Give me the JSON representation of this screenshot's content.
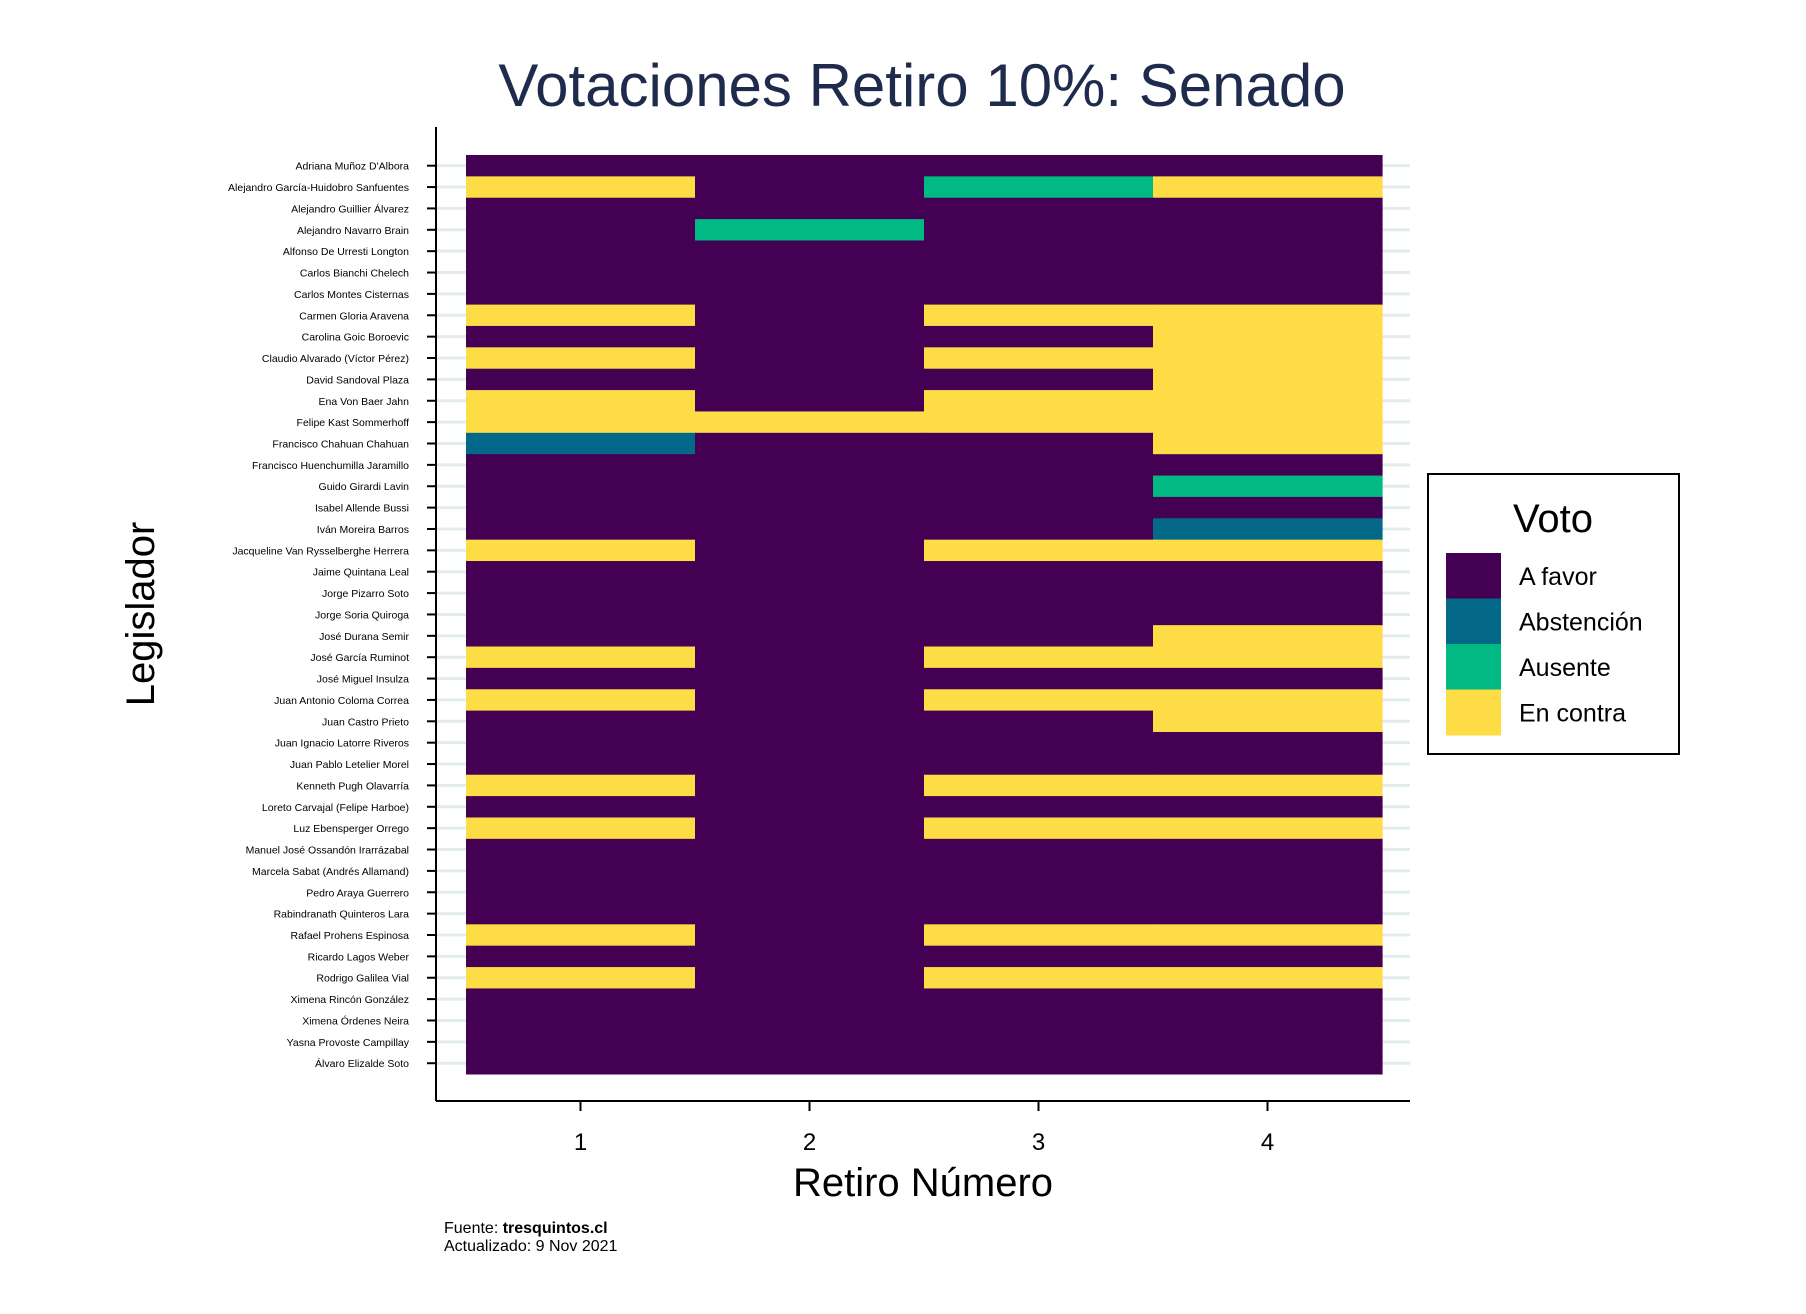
{
  "chart_data": {
    "type": "heatmap",
    "title": "Votaciones Retiro 10%: Senado",
    "xlabel": "Retiro Número",
    "ylabel": "Legislador",
    "x_categories": [
      "1",
      "2",
      "3",
      "4"
    ],
    "legend": {
      "title": "Voto",
      "placement": "right",
      "entries": [
        {
          "label": "A favor",
          "color": "#440154"
        },
        {
          "label": "Abstención",
          "color": "#046888"
        },
        {
          "label": "Ausente",
          "color": "#00b983"
        },
        {
          "label": "En contra",
          "color": "#fddc46"
        }
      ]
    },
    "rows": [
      {
        "name": "Adriana Muñoz D'Albora",
        "votes": [
          "A favor",
          "A favor",
          "A favor",
          "A favor"
        ]
      },
      {
        "name": "Alejandro García-Huidobro Sanfuentes",
        "votes": [
          "En contra",
          "A favor",
          "Ausente",
          "En contra"
        ]
      },
      {
        "name": "Alejandro Guillier Álvarez",
        "votes": [
          "A favor",
          "A favor",
          "A favor",
          "A favor"
        ]
      },
      {
        "name": "Alejandro Navarro Brain",
        "votes": [
          "A favor",
          "Ausente",
          "A favor",
          "A favor"
        ]
      },
      {
        "name": "Alfonso De Urresti Longton",
        "votes": [
          "A favor",
          "A favor",
          "A favor",
          "A favor"
        ]
      },
      {
        "name": "Carlos Bianchi Chelech",
        "votes": [
          "A favor",
          "A favor",
          "A favor",
          "A favor"
        ]
      },
      {
        "name": "Carlos Montes Cisternas",
        "votes": [
          "A favor",
          "A favor",
          "A favor",
          "A favor"
        ]
      },
      {
        "name": "Carmen Gloria Aravena",
        "votes": [
          "En contra",
          "A favor",
          "En contra",
          "En contra"
        ]
      },
      {
        "name": "Carolina Goic Boroevic",
        "votes": [
          "A favor",
          "A favor",
          "A favor",
          "En contra"
        ]
      },
      {
        "name": "Claudio Alvarado (Víctor Pérez)",
        "votes": [
          "En contra",
          "A favor",
          "En contra",
          "En contra"
        ]
      },
      {
        "name": "David Sandoval Plaza",
        "votes": [
          "A favor",
          "A favor",
          "A favor",
          "En contra"
        ]
      },
      {
        "name": "Ena Von Baer Jahn",
        "votes": [
          "En contra",
          "A favor",
          "En contra",
          "En contra"
        ]
      },
      {
        "name": "Felipe Kast Sommerhoff",
        "votes": [
          "En contra",
          "En contra",
          "En contra",
          "En contra"
        ]
      },
      {
        "name": "Francisco Chahuan Chahuan",
        "votes": [
          "Abstención",
          "A favor",
          "A favor",
          "En contra"
        ]
      },
      {
        "name": "Francisco Huenchumilla Jaramillo",
        "votes": [
          "A favor",
          "A favor",
          "A favor",
          "A favor"
        ]
      },
      {
        "name": "Guido Girardi Lavin",
        "votes": [
          "A favor",
          "A favor",
          "A favor",
          "Ausente"
        ]
      },
      {
        "name": "Isabel Allende Bussi",
        "votes": [
          "A favor",
          "A favor",
          "A favor",
          "A favor"
        ]
      },
      {
        "name": "Iván Moreira Barros",
        "votes": [
          "A favor",
          "A favor",
          "A favor",
          "Abstención"
        ]
      },
      {
        "name": "Jacqueline Van Rysselberghe Herrera",
        "votes": [
          "En contra",
          "A favor",
          "En contra",
          "En contra"
        ]
      },
      {
        "name": "Jaime Quintana Leal",
        "votes": [
          "A favor",
          "A favor",
          "A favor",
          "A favor"
        ]
      },
      {
        "name": "Jorge Pizarro Soto",
        "votes": [
          "A favor",
          "A favor",
          "A favor",
          "A favor"
        ]
      },
      {
        "name": "Jorge Soria Quiroga",
        "votes": [
          "A favor",
          "A favor",
          "A favor",
          "A favor"
        ]
      },
      {
        "name": "José Durana Semir",
        "votes": [
          "A favor",
          "A favor",
          "A favor",
          "En contra"
        ]
      },
      {
        "name": "José García Ruminot",
        "votes": [
          "En contra",
          "A favor",
          "En contra",
          "En contra"
        ]
      },
      {
        "name": "José Miguel Insulza",
        "votes": [
          "A favor",
          "A favor",
          "A favor",
          "A favor"
        ]
      },
      {
        "name": "Juan Antonio Coloma Correa",
        "votes": [
          "En contra",
          "A favor",
          "En contra",
          "En contra"
        ]
      },
      {
        "name": "Juan Castro Prieto",
        "votes": [
          "A favor",
          "A favor",
          "A favor",
          "En contra"
        ]
      },
      {
        "name": "Juan Ignacio Latorre Riveros",
        "votes": [
          "A favor",
          "A favor",
          "A favor",
          "A favor"
        ]
      },
      {
        "name": "Juan Pablo Letelier Morel",
        "votes": [
          "A favor",
          "A favor",
          "A favor",
          "A favor"
        ]
      },
      {
        "name": "Kenneth Pugh Olavarría",
        "votes": [
          "En contra",
          "A favor",
          "En contra",
          "En contra"
        ]
      },
      {
        "name": "Loreto Carvajal (Felipe Harboe)",
        "votes": [
          "A favor",
          "A favor",
          "A favor",
          "A favor"
        ]
      },
      {
        "name": "Luz Ebensperger Orrego",
        "votes": [
          "En contra",
          "A favor",
          "En contra",
          "En contra"
        ]
      },
      {
        "name": "Manuel José Ossandón Irarrázabal",
        "votes": [
          "A favor",
          "A favor",
          "A favor",
          "A favor"
        ]
      },
      {
        "name": "Marcela Sabat (Andrés Allamand)",
        "votes": [
          "A favor",
          "A favor",
          "A favor",
          "A favor"
        ]
      },
      {
        "name": "Pedro Araya Guerrero",
        "votes": [
          "A favor",
          "A favor",
          "A favor",
          "A favor"
        ]
      },
      {
        "name": "Rabindranath Quinteros Lara",
        "votes": [
          "A favor",
          "A favor",
          "A favor",
          "A favor"
        ]
      },
      {
        "name": "Rafael Prohens Espinosa",
        "votes": [
          "En contra",
          "A favor",
          "En contra",
          "En contra"
        ]
      },
      {
        "name": "Ricardo Lagos Weber",
        "votes": [
          "A favor",
          "A favor",
          "A favor",
          "A favor"
        ]
      },
      {
        "name": "Rodrigo Galilea Vial",
        "votes": [
          "En contra",
          "A favor",
          "En contra",
          "En contra"
        ]
      },
      {
        "name": "Ximena Rincón González",
        "votes": [
          "A favor",
          "A favor",
          "A favor",
          "A favor"
        ]
      },
      {
        "name": "Ximena Órdenes Neira",
        "votes": [
          "A favor",
          "A favor",
          "A favor",
          "A favor"
        ]
      },
      {
        "name": "Yasna Provoste Campillay",
        "votes": [
          "A favor",
          "A favor",
          "A favor",
          "A favor"
        ]
      },
      {
        "name": "Álvaro Elizalde Soto",
        "votes": [
          "A favor",
          "A favor",
          "A favor",
          "A favor"
        ]
      }
    ]
  },
  "footer": {
    "source_prefix": "Fuente: ",
    "source_name": "tresquintos.cl",
    "updated": "Actualizado: 9 Nov 2021"
  },
  "colors": {
    "title": "#1f2b4d",
    "text": "#000000",
    "gridline": "#e3ecec"
  }
}
